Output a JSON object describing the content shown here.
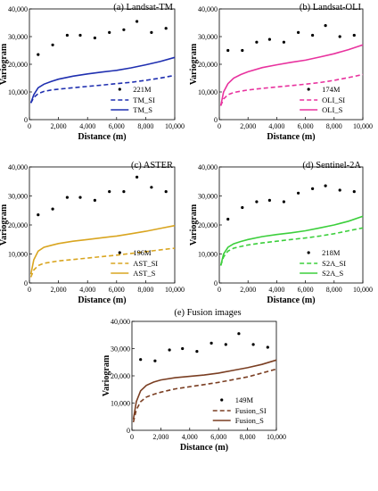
{
  "chart_data": [
    {
      "type": "scatter+line",
      "title": "(a) Landsat-TM",
      "xlabel": "Distance  (m)",
      "ylabel": "Variogram",
      "xlim": [
        0,
        10000
      ],
      "ylim": [
        0,
        40000
      ],
      "xticks": [
        "0",
        "2,000",
        "4,000",
        "6,000",
        "8,000",
        "10,000"
      ],
      "yticks": [
        "0",
        "10,000",
        "20,000",
        "30,000",
        "40,000"
      ],
      "points_label": "221M",
      "points": [
        [
          600,
          23500
        ],
        [
          1600,
          27000
        ],
        [
          2600,
          30500
        ],
        [
          3500,
          30500
        ],
        [
          4500,
          29500
        ],
        [
          5500,
          31500
        ],
        [
          6500,
          32500
        ],
        [
          7400,
          35500
        ],
        [
          8400,
          31500
        ],
        [
          9400,
          33000
        ]
      ],
      "series": [
        {
          "name": "TM_SI",
          "style": "dashed",
          "color": "#1f2fb0",
          "x": [
            100,
            300,
            600,
            1000,
            1500,
            2000,
            3000,
            4000,
            5000,
            6000,
            7000,
            8000,
            9000,
            10000
          ],
          "y": [
            6000,
            8000,
            9400,
            10200,
            10700,
            11000,
            11500,
            12000,
            12500,
            13000,
            13500,
            14200,
            15000,
            16000
          ]
        },
        {
          "name": "TM_S",
          "style": "solid",
          "color": "#1f2fb0",
          "x": [
            100,
            300,
            600,
            1000,
            1500,
            2000,
            3000,
            4000,
            5000,
            6000,
            7000,
            8000,
            9000,
            10000
          ],
          "y": [
            6000,
            9000,
            11500,
            12800,
            13800,
            14600,
            15700,
            16500,
            17200,
            17800,
            18700,
            19800,
            21000,
            22500
          ]
        }
      ]
    },
    {
      "type": "scatter+line",
      "title": "(b) Landsat-OLI",
      "xlabel": "Distance  (m)",
      "ylabel": "Variogram",
      "xlim": [
        0,
        10000
      ],
      "ylim": [
        0,
        40000
      ],
      "xticks": [
        "0",
        "2,000",
        "4,000",
        "6,000",
        "8,000",
        "10,000"
      ],
      "yticks": [
        "0",
        "10,000",
        "20,000",
        "30,000",
        "40,000"
      ],
      "points_label": "174M",
      "points": [
        [
          600,
          25000
        ],
        [
          1600,
          25000
        ],
        [
          2600,
          28000
        ],
        [
          3500,
          29000
        ],
        [
          4500,
          28000
        ],
        [
          5500,
          31500
        ],
        [
          6500,
          30500
        ],
        [
          7400,
          34000
        ],
        [
          8400,
          30000
        ],
        [
          9400,
          30500
        ]
      ],
      "series": [
        {
          "name": "OLI_SI",
          "style": "dashed",
          "color": "#e8329e",
          "x": [
            100,
            300,
            600,
            1000,
            1500,
            2000,
            3000,
            4000,
            5000,
            6000,
            7000,
            8000,
            9000,
            10000
          ],
          "y": [
            5000,
            7500,
            9000,
            9800,
            10300,
            10700,
            11300,
            11800,
            12300,
            12800,
            13400,
            14200,
            15200,
            16300
          ]
        },
        {
          "name": "OLI_S",
          "style": "solid",
          "color": "#e8329e",
          "x": [
            100,
            300,
            600,
            1000,
            1500,
            2000,
            3000,
            4000,
            5000,
            6000,
            7000,
            8000,
            9000,
            10000
          ],
          "y": [
            5000,
            10000,
            13000,
            15000,
            16300,
            17300,
            18800,
            19800,
            20700,
            21500,
            22600,
            23800,
            25300,
            27000
          ]
        }
      ]
    },
    {
      "type": "scatter+line",
      "title": "(c) ASTER",
      "xlabel": "Distance  (m)",
      "ylabel": "Variogram",
      "xlim": [
        0,
        10000
      ],
      "ylim": [
        0,
        40000
      ],
      "xticks": [
        "0",
        "2,000",
        "4,000",
        "6,000",
        "8,000",
        "10,000"
      ],
      "yticks": [
        "0",
        "10,000",
        "20,000",
        "30,000",
        "40,000"
      ],
      "points_label": "196M",
      "points": [
        [
          600,
          23500
        ],
        [
          1600,
          25500
        ],
        [
          2600,
          29500
        ],
        [
          3500,
          29500
        ],
        [
          4500,
          28500
        ],
        [
          5500,
          31500
        ],
        [
          6500,
          31500
        ],
        [
          7400,
          36500
        ],
        [
          8400,
          33000
        ],
        [
          9400,
          31500
        ]
      ],
      "series": [
        {
          "name": "AST_SI",
          "style": "dashed",
          "color": "#d9a520",
          "x": [
            100,
            300,
            600,
            1000,
            1500,
            2000,
            3000,
            4000,
            5000,
            6000,
            7000,
            8000,
            9000,
            10000
          ],
          "y": [
            2000,
            4500,
            6000,
            6800,
            7200,
            7600,
            8100,
            8600,
            9100,
            9600,
            10200,
            10800,
            11400,
            12000
          ]
        },
        {
          "name": "AST_S",
          "style": "solid",
          "color": "#d9a520",
          "x": [
            100,
            300,
            600,
            1000,
            1500,
            2000,
            3000,
            4000,
            5000,
            6000,
            7000,
            8000,
            9000,
            10000
          ],
          "y": [
            3000,
            8000,
            11000,
            12300,
            13000,
            13600,
            14400,
            15000,
            15600,
            16200,
            17000,
            17800,
            18800,
            19800
          ]
        }
      ]
    },
    {
      "type": "scatter+line",
      "title": "(d) Sentinel-2A",
      "xlabel": "Distance  (m)",
      "ylabel": "Variogram",
      "xlim": [
        0,
        10000
      ],
      "ylim": [
        0,
        40000
      ],
      "xticks": [
        "0",
        "2,000",
        "4,000",
        "6,000",
        "8,000",
        "10,000"
      ],
      "yticks": [
        "0",
        "10,000",
        "20,000",
        "30,000",
        "40,000"
      ],
      "points_label": "218M",
      "points": [
        [
          600,
          22000
        ],
        [
          1600,
          26000
        ],
        [
          2600,
          28000
        ],
        [
          3500,
          28500
        ],
        [
          4500,
          28000
        ],
        [
          5500,
          31000
        ],
        [
          6500,
          32500
        ],
        [
          7400,
          33500
        ],
        [
          8400,
          32000
        ],
        [
          9400,
          31500
        ]
      ],
      "series": [
        {
          "name": "S2A_SI",
          "style": "dashed",
          "color": "#3ccf3c",
          "x": [
            100,
            300,
            600,
            1000,
            1500,
            2000,
            3000,
            4000,
            5000,
            6000,
            7000,
            8000,
            9000,
            10000
          ],
          "y": [
            6000,
            9000,
            11000,
            12000,
            12600,
            13100,
            13800,
            14400,
            15000,
            15500,
            16200,
            17000,
            18000,
            19000
          ]
        },
        {
          "name": "S2A_S",
          "style": "solid",
          "color": "#3ccf3c",
          "x": [
            100,
            300,
            600,
            1000,
            1500,
            2000,
            3000,
            4000,
            5000,
            6000,
            7000,
            8000,
            9000,
            10000
          ],
          "y": [
            6000,
            10000,
            12300,
            13500,
            14300,
            15000,
            16000,
            16700,
            17300,
            18000,
            19000,
            20000,
            21300,
            23000
          ]
        }
      ]
    },
    {
      "type": "scatter+line",
      "title": "(e) Fusion images",
      "xlabel": "Distance  (m)",
      "ylabel": "Variogram",
      "xlim": [
        0,
        10000
      ],
      "ylim": [
        0,
        40000
      ],
      "xticks": [
        "0",
        "2,000",
        "4,000",
        "6,000",
        "8,000",
        "10,000"
      ],
      "yticks": [
        "0",
        "10,000",
        "20,000",
        "30,000",
        "40,000"
      ],
      "points_label": "149M",
      "points": [
        [
          600,
          26000
        ],
        [
          1600,
          25500
        ],
        [
          2600,
          29500
        ],
        [
          3500,
          30000
        ],
        [
          4500,
          29000
        ],
        [
          5500,
          32000
        ],
        [
          6500,
          31500
        ],
        [
          7400,
          35500
        ],
        [
          8400,
          31500
        ],
        [
          9400,
          30500
        ]
      ],
      "series": [
        {
          "name": "Fusion_SI",
          "style": "dashed",
          "color": "#7a3e22",
          "x": [
            100,
            300,
            600,
            1000,
            1500,
            2000,
            3000,
            4000,
            5000,
            6000,
            7000,
            8000,
            9000,
            10000
          ],
          "y": [
            3000,
            7500,
            10500,
            12200,
            13200,
            14000,
            15200,
            16000,
            16800,
            17600,
            18600,
            19600,
            21000,
            22500
          ]
        },
        {
          "name": "Fusion_S",
          "style": "solid",
          "color": "#7a3e22",
          "x": [
            100,
            300,
            600,
            1000,
            1500,
            2000,
            3000,
            4000,
            5000,
            6000,
            7000,
            8000,
            9000,
            10000
          ],
          "y": [
            4000,
            10500,
            14500,
            16500,
            17700,
            18500,
            19300,
            19800,
            20300,
            21000,
            22000,
            23000,
            24200,
            25800
          ]
        }
      ]
    }
  ]
}
